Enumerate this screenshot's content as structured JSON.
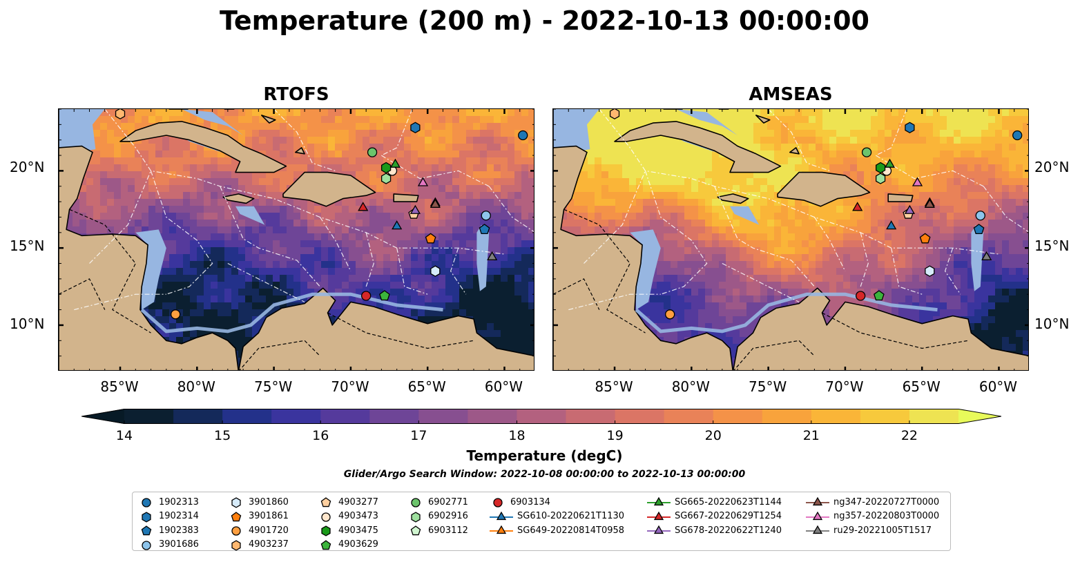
{
  "title": "Temperature (200 m) - 2022-10-13 00:00:00",
  "panels": [
    {
      "id": "rtofs",
      "title": "RTOFS"
    },
    {
      "id": "amseas",
      "title": "AMSEAS"
    }
  ],
  "map": {
    "lon_range": [
      -89,
      -58
    ],
    "lat_range": [
      7,
      24
    ],
    "lon_ticks": [
      "85°W",
      "80°W",
      "75°W",
      "70°W",
      "65°W",
      "60°W"
    ],
    "lat_ticks": [
      "20°N",
      "15°N",
      "10°N"
    ],
    "land_color": "#d2b48c",
    "shallow_water_color": "#97b6e1"
  },
  "colorbar": {
    "label": "Temperature (degC)",
    "ticks": [
      "14",
      "15",
      "16",
      "17",
      "18",
      "19",
      "20",
      "21",
      "22"
    ],
    "colors": [
      "#0b1f30",
      "#14295a",
      "#23318a",
      "#3a349e",
      "#553a9c",
      "#6e4597",
      "#874f90",
      "#9d5888",
      "#b3617f",
      "#c86b72",
      "#db7565",
      "#e98258",
      "#f49248",
      "#f8a33c",
      "#fab538",
      "#f7c93c",
      "#eee352"
    ],
    "under_color": "#071a26",
    "over_color": "#e8fa5a",
    "extend": "both"
  },
  "search_window": "Glider/Argo Search Window: 2022-10-08 00:00:00 to 2022-10-13 00:00:00",
  "legend": {
    "columns": [
      [
        {
          "label": "1902313",
          "marker": "circle",
          "color": "#1f77b4"
        },
        {
          "label": "1902314",
          "marker": "hexagon",
          "color": "#1f77b4"
        },
        {
          "label": "1902383",
          "marker": "pentagon",
          "color": "#1f77b4"
        },
        {
          "label": "3901686",
          "marker": "circle",
          "color": "#8dc4eb"
        }
      ],
      [
        {
          "label": "3901860",
          "marker": "hexagon",
          "color": "#d6ebfa"
        },
        {
          "label": "3901861",
          "marker": "pentagon",
          "color": "#ff7f0e"
        },
        {
          "label": "4901720",
          "marker": "circle",
          "color": "#ff9f40"
        },
        {
          "label": "4903237",
          "marker": "hexagon",
          "color": "#ffb870"
        }
      ],
      [
        {
          "label": "4903277",
          "marker": "pentagon",
          "color": "#ffd0a0"
        },
        {
          "label": "4903473",
          "marker": "circle",
          "color": "#ffe6cc"
        },
        {
          "label": "4903475",
          "marker": "hexagon",
          "color": "#1a9a1a"
        },
        {
          "label": "4903629",
          "marker": "pentagon",
          "color": "#3cb43c"
        }
      ],
      [
        {
          "label": "6902771",
          "marker": "circle",
          "color": "#6cc46c"
        },
        {
          "label": "6902916",
          "marker": "hexagon",
          "color": "#9ee09e"
        },
        {
          "label": "6903112",
          "marker": "pentagon",
          "color": "#d0f5d0"
        }
      ],
      [
        {
          "label": "6903134",
          "marker": "circle",
          "color": "#d62728"
        },
        {
          "label": "SG610-20220621T1130",
          "marker": "triangle-line",
          "color": "#1f77b4"
        },
        {
          "label": "SG649-20220814T0958",
          "marker": "triangle-line",
          "color": "#ff7f0e"
        }
      ],
      [
        {
          "label": "SG665-20220623T1144",
          "marker": "triangle-line",
          "color": "#2ca02c"
        },
        {
          "label": "SG667-20220629T1254",
          "marker": "triangle-line",
          "color": "#d62728"
        },
        {
          "label": "SG678-20220622T1240",
          "marker": "triangle-line",
          "color": "#9467bd"
        }
      ],
      [
        {
          "label": "ng347-20220727T0000",
          "marker": "triangle-line",
          "color": "#8c564b"
        },
        {
          "label": "ng357-20220803T0000",
          "marker": "triangle-line",
          "color": "#e377c2"
        },
        {
          "label": "ru29-20221005T1517",
          "marker": "triangle-line",
          "color": "#7f7f7f"
        }
      ]
    ]
  },
  "observations": [
    {
      "label": "1902313",
      "lon": -58.8,
      "lat": 22.3
    },
    {
      "label": "1902314",
      "lon": -65.8,
      "lat": 22.8
    },
    {
      "label": "3901686",
      "lon": -61.2,
      "lat": 17.1
    },
    {
      "label": "1902383",
      "lon": -61.3,
      "lat": 16.2
    },
    {
      "label": "3901860",
      "lon": -64.5,
      "lat": 13.5
    },
    {
      "label": "3901861",
      "lon": -64.8,
      "lat": 15.6
    },
    {
      "label": "4901720",
      "lon": -81.4,
      "lat": 10.7
    },
    {
      "label": "4903237",
      "lon": -85.0,
      "lat": 23.7
    },
    {
      "label": "4903277",
      "lon": -65.9,
      "lat": 17.2
    },
    {
      "label": "4903473",
      "lon": -67.3,
      "lat": 20.0
    },
    {
      "label": "4903475",
      "lon": -67.7,
      "lat": 20.2
    },
    {
      "label": "4903629",
      "lon": -67.8,
      "lat": 11.9
    },
    {
      "label": "6902771",
      "lon": -68.6,
      "lat": 21.2
    },
    {
      "label": "6902916",
      "lon": -67.7,
      "lat": 19.5
    },
    {
      "label": "6903134",
      "lon": -69.0,
      "lat": 11.9
    },
    {
      "label": "SG610-20220621T1130",
      "lon": -67.0,
      "lat": 16.4
    },
    {
      "label": "SG649-20220814T0958",
      "lon": -64.5,
      "lat": 17.9
    },
    {
      "label": "SG665-20220623T1144",
      "lon": -67.1,
      "lat": 20.4
    },
    {
      "label": "SG667-20220629T1254",
      "lon": -69.2,
      "lat": 17.6
    },
    {
      "label": "SG678-20220622T1240",
      "lon": -65.8,
      "lat": 17.4
    },
    {
      "label": "ng347-20220727T0000",
      "lon": -64.5,
      "lat": 17.8
    },
    {
      "label": "ng357-20220803T0000",
      "lon": -65.3,
      "lat": 19.2
    },
    {
      "label": "ru29-20221005T1517",
      "lon": -60.8,
      "lat": 14.4
    }
  ]
}
